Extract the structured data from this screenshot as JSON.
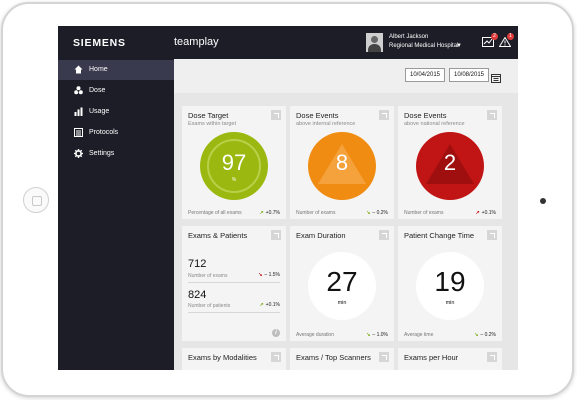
{
  "header": {
    "brand": "SIEMENS",
    "app_name": "teamplay",
    "user_name": "Albert Jackson",
    "user_org": "Regional Medical Hospital",
    "notification_count_1": "2",
    "notification_count_2": "1"
  },
  "sidebar": {
    "items": [
      {
        "label": "Home",
        "icon": "home-icon",
        "active": true
      },
      {
        "label": "Dose",
        "icon": "radiation-icon"
      },
      {
        "label": "Usage",
        "icon": "bar-chart-icon"
      },
      {
        "label": "Protocols",
        "icon": "protocol-list-icon"
      },
      {
        "label": "Settings",
        "icon": "gear-icon"
      }
    ]
  },
  "date_range": {
    "from": "10/04/2015",
    "to": "10/08/2015"
  },
  "cards": {
    "dose_target": {
      "title": "Dose Target",
      "subtitle": "Exams within target",
      "value": "97",
      "unit": "%",
      "footer": "Percentage of all exams",
      "trend": "+0.7%",
      "color": "#9ab80f"
    },
    "dose_events_internal": {
      "title": "Dose Events",
      "subtitle": "above internal reference",
      "value": "8",
      "footer": "Number of exams",
      "trend": "– 0.2%",
      "color": "#f08c12"
    },
    "dose_events_national": {
      "title": "Dose Events",
      "subtitle": "above national reference",
      "value": "2",
      "footer": "Number of exams",
      "trend": "+0.1%",
      "color": "#c11414"
    },
    "exams_patients": {
      "title": "Exams & Patients",
      "exams_value": "712",
      "exams_label": "Number of exams",
      "exams_trend": "– 1.5%",
      "patients_value": "824",
      "patients_label": "Number of patients",
      "patients_trend": "+0.1%"
    },
    "exam_duration": {
      "title": "Exam Duration",
      "value": "27",
      "unit": "min",
      "footer": "Average duration",
      "trend": "– 1.0%"
    },
    "patient_change_time": {
      "title": "Patient Change Time",
      "value": "19",
      "unit": "min",
      "footer": "Average time",
      "trend": "– 0.2%"
    },
    "exams_by_modalities": {
      "title": "Exams by Modalities"
    },
    "exams_top_scanners": {
      "title": "Exams / Top Scanners"
    },
    "exams_per_hour": {
      "title": "Exams per Hour"
    }
  }
}
